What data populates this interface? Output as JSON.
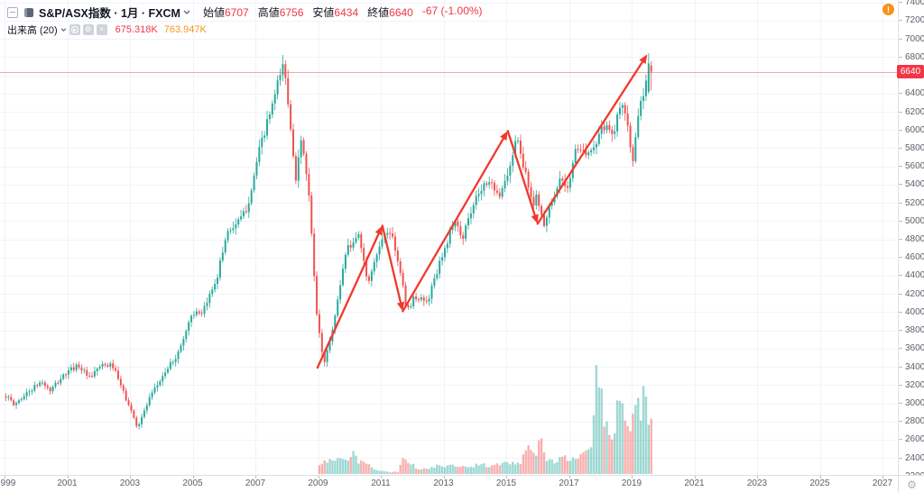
{
  "header": {
    "title_full": "S&P/ASX指数 · 1月 · FXCM",
    "ohlc": {
      "items": [
        {
          "label": "始値",
          "value": "6707"
        },
        {
          "label": "高値",
          "value": "6756"
        },
        {
          "label": "安値",
          "value": "6434"
        },
        {
          "label": "終値",
          "value": "6640"
        }
      ],
      "change": "-67 (-1.00%)"
    },
    "indicator": {
      "name": "出来高 (20)",
      "volume_value": "675.318K",
      "volume_ma_value": "763.947K"
    },
    "alert_badge_text": "!"
  },
  "icons": {
    "collapse_icon": "minus-in-square",
    "chevron_down_icon": "v",
    "eye_icon": "circle-dot",
    "settings_icon": "⚙",
    "close_icon": "×",
    "axis_settings_icon": "⚙",
    "alert_icon": "!"
  },
  "price_axis": {
    "ticks": [
      "7400",
      "7200",
      "7000",
      "6800",
      "6600",
      "6400",
      "6200",
      "6000",
      "5800",
      "5600",
      "5400",
      "5200",
      "5000",
      "4800",
      "4600",
      "4400",
      "4200",
      "4000",
      "3800",
      "3600",
      "3400",
      "3200",
      "3000",
      "2800",
      "2600",
      "2400",
      "2200"
    ],
    "current_price_label": "6640"
  },
  "time_axis": {
    "labels": [
      "999",
      "2001",
      "2003",
      "2005",
      "2007",
      "2009",
      "2011",
      "2013",
      "2015",
      "2017",
      "2019",
      "2021",
      "2023",
      "2025",
      "2027"
    ]
  },
  "chart_data": {
    "type": "candlestick",
    "title": "S&P/ASX指数 · 1月 · FXCM",
    "symbol": "S&P/ASX指数",
    "interval": "1月",
    "source": "FXCM",
    "y_axis": {
      "min": 2200,
      "max": 7400,
      "tick_step": 200,
      "grid": true
    },
    "x_axis": {
      "first_year": 1999,
      "last_visible_year": 2027,
      "tick_step_years": 2,
      "grid": true
    },
    "series_start": 1999.0,
    "series_end": 2019.583,
    "current_price": 6640,
    "close_path_keypoints": [
      [
        1999.0,
        3090
      ],
      [
        1999.25,
        2980
      ],
      [
        1999.7,
        3120
      ],
      [
        2000.15,
        3240
      ],
      [
        2000.4,
        3130
      ],
      [
        2000.85,
        3310
      ],
      [
        2001.3,
        3425
      ],
      [
        2001.7,
        3260
      ],
      [
        2001.95,
        3400
      ],
      [
        2002.4,
        3420
      ],
      [
        2002.75,
        3120
      ],
      [
        2003.2,
        2740
      ],
      [
        2003.6,
        3060
      ],
      [
        2004.0,
        3300
      ],
      [
        2004.5,
        3550
      ],
      [
        2004.95,
        4000
      ],
      [
        2005.25,
        3960
      ],
      [
        2005.75,
        4410
      ],
      [
        2006.05,
        4880
      ],
      [
        2006.45,
        5000
      ],
      [
        2006.7,
        5150
      ],
      [
        2007.1,
        5800
      ],
      [
        2007.55,
        6330
      ],
      [
        2007.85,
        6750
      ],
      [
        2008.05,
        6150
      ],
      [
        2008.25,
        5480
      ],
      [
        2008.45,
        5920
      ],
      [
        2008.7,
        5150
      ],
      [
        2008.9,
        4000
      ],
      [
        2009.15,
        3420
      ],
      [
        2009.5,
        3960
      ],
      [
        2009.85,
        4680
      ],
      [
        2010.25,
        4850
      ],
      [
        2010.55,
        4330
      ],
      [
        2010.85,
        4650
      ],
      [
        2011.1,
        4880
      ],
      [
        2011.3,
        4880
      ],
      [
        2011.65,
        4300
      ],
      [
        2011.8,
        4010
      ],
      [
        2012.05,
        4180
      ],
      [
        2012.45,
        4100
      ],
      [
        2012.75,
        4450
      ],
      [
        2013.05,
        4750
      ],
      [
        2013.35,
        5050
      ],
      [
        2013.55,
        4800
      ],
      [
        2013.95,
        5250
      ],
      [
        2014.35,
        5450
      ],
      [
        2014.75,
        5300
      ],
      [
        2015.0,
        5500
      ],
      [
        2015.3,
        5920
      ],
      [
        2015.65,
        5400
      ],
      [
        2015.8,
        5150
      ],
      [
        2015.95,
        5300
      ],
      [
        2016.15,
        4900
      ],
      [
        2016.45,
        5280
      ],
      [
        2016.75,
        5480
      ],
      [
        2016.9,
        5350
      ],
      [
        2017.15,
        5750
      ],
      [
        2017.45,
        5780
      ],
      [
        2017.65,
        5720
      ],
      [
        2017.95,
        6000
      ],
      [
        2018.15,
        6060
      ],
      [
        2018.35,
        5950
      ],
      [
        2018.65,
        6300
      ],
      [
        2018.8,
        6180
      ],
      [
        2018.98,
        5620
      ],
      [
        2019.2,
        6200
      ],
      [
        2019.4,
        6500
      ],
      [
        2019.5,
        6730
      ],
      [
        2019.59,
        6640
      ]
    ],
    "volume_series_start": 2009.0,
    "volume_keypoints_thousands": [
      [
        2009.0,
        120
      ],
      [
        2009.4,
        170
      ],
      [
        2009.9,
        160
      ],
      [
        2010.08,
        255
      ],
      [
        2010.25,
        160
      ],
      [
        2010.42,
        185
      ],
      [
        2010.6,
        90
      ],
      [
        2010.9,
        40
      ],
      [
        2011.2,
        22
      ],
      [
        2011.5,
        28
      ],
      [
        2011.7,
        225
      ],
      [
        2011.85,
        155
      ],
      [
        2012.1,
        70
      ],
      [
        2012.4,
        60
      ],
      [
        2012.7,
        95
      ],
      [
        2013.0,
        90
      ],
      [
        2013.3,
        110
      ],
      [
        2013.6,
        85
      ],
      [
        2013.9,
        100
      ],
      [
        2014.2,
        110
      ],
      [
        2014.5,
        100
      ],
      [
        2014.8,
        120
      ],
      [
        2015.1,
        130
      ],
      [
        2015.4,
        140
      ],
      [
        2015.7,
        330
      ],
      [
        2015.88,
        200
      ],
      [
        2016.04,
        565
      ],
      [
        2016.2,
        180
      ],
      [
        2016.5,
        160
      ],
      [
        2016.8,
        185
      ],
      [
        2017.1,
        205
      ],
      [
        2017.4,
        245
      ],
      [
        2017.7,
        330
      ],
      [
        2017.83,
        1430
      ],
      [
        2017.95,
        1090
      ],
      [
        2018.08,
        640
      ],
      [
        2018.25,
        420
      ],
      [
        2018.42,
        500
      ],
      [
        2018.55,
        1010
      ],
      [
        2018.7,
        890
      ],
      [
        2018.85,
        610
      ],
      [
        2019.0,
        660
      ],
      [
        2019.12,
        905
      ],
      [
        2019.25,
        640
      ],
      [
        2019.37,
        985
      ],
      [
        2019.5,
        600
      ],
      [
        2019.59,
        675
      ]
    ],
    "final_bars": [
      {
        "t": 2019.5,
        "open": 6420,
        "high": 6845,
        "low": 6395,
        "close": 6730,
        "volume_k": 600
      },
      {
        "t": 2019.583,
        "open": 6707,
        "high": 6756,
        "low": 6434,
        "close": 6640,
        "volume_k": 675.318
      }
    ],
    "trend_arrows": {
      "color": "#f0392b",
      "points": [
        [
          2008.98,
          3390
        ],
        [
          2011.05,
          4950
        ],
        [
          2011.7,
          4010
        ],
        [
          2015.05,
          5990
        ],
        [
          2016.0,
          4970
        ],
        [
          2019.5,
          6830
        ]
      ]
    },
    "colors": {
      "up": "#2aa99c",
      "down": "#ef5350",
      "volume_up": "rgba(42,169,156,0.45)",
      "volume_down": "rgba(239,83,80,0.45)",
      "grid": "#f0f3fa",
      "current_price_line": "rgba(242,54,69,0.45)",
      "badge": "#f23645"
    }
  }
}
